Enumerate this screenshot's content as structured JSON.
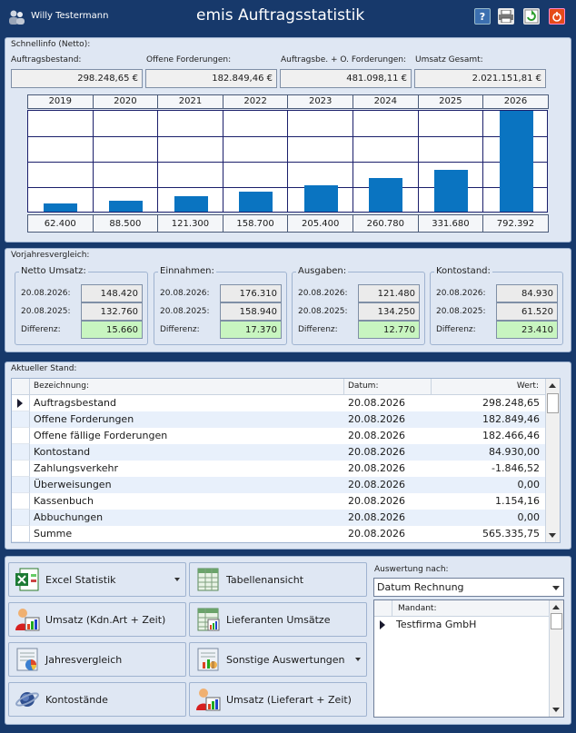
{
  "header": {
    "user_name": "Willy Testermann",
    "title": "emis Auftragsstatistik",
    "help_icon": "?",
    "print_icon": "printer-icon",
    "refresh_icon": "refresh-icon",
    "power_icon": "power-icon"
  },
  "schnellinfo": {
    "title": "Schnellinfo (Netto):",
    "fields": [
      {
        "label": "Auftragsbestand:",
        "value": "298.248,65 €"
      },
      {
        "label": "Offene Forderungen:",
        "value": "182.849,46 €"
      },
      {
        "label": "Auftragsbe. + O. Forderungen:",
        "value": "481.098,11 €"
      },
      {
        "label": "Umsatz Gesamt:",
        "value": "2.021.151,81 €"
      }
    ]
  },
  "chart_data": {
    "type": "bar",
    "categories": [
      "2019",
      "2020",
      "2021",
      "2022",
      "2023",
      "2024",
      "2025",
      "2026"
    ],
    "values": [
      62400,
      88500,
      121300,
      158700,
      205400,
      260780,
      331680,
      792392
    ],
    "value_labels": [
      "62.400",
      "88.500",
      "121.300",
      "158.700",
      "205.400",
      "260.780",
      "331.680",
      "792.392"
    ],
    "ylim": [
      0,
      792392
    ],
    "grid": true,
    "color": "#0a74c1"
  },
  "vorjahr": {
    "title": "Vorjahresvergleich:",
    "groups": [
      {
        "title": "Netto Umsatz:",
        "date1": "20.08.2026:",
        "val1": "148.420",
        "date2": "20.08.2025:",
        "val2": "132.760",
        "diff_label": "Differenz:",
        "diff": "15.660"
      },
      {
        "title": "Einnahmen:",
        "date1": "20.08.2026:",
        "val1": "176.310",
        "date2": "20.08.2025:",
        "val2": "158.940",
        "diff_label": "Differenz:",
        "diff": "17.370"
      },
      {
        "title": "Ausgaben:",
        "date1": "20.08.2026:",
        "val1": "121.480",
        "date2": "20.08.2025:",
        "val2": "134.250",
        "diff_label": "Differenz:",
        "diff": "12.770"
      },
      {
        "title": "Kontostand:",
        "date1": "20.08.2026:",
        "val1": "84.930",
        "date2": "20.08.2025:",
        "val2": "61.520",
        "diff_label": "Differenz:",
        "diff": "23.410"
      }
    ]
  },
  "stand": {
    "title": "Aktueller Stand:",
    "columns": [
      "Bezeichnung:",
      "Datum:",
      "Wert:"
    ],
    "rows": [
      {
        "name": "Auftragsbestand",
        "date": "20.08.2026",
        "value": "298.248,65"
      },
      {
        "name": "Offene Forderungen",
        "date": "20.08.2026",
        "value": "182.849,46"
      },
      {
        "name": "Offene fällige Forderungen",
        "date": "20.08.2026",
        "value": "182.466,46"
      },
      {
        "name": "Kontostand",
        "date": "20.08.2026",
        "value": "84.930,00"
      },
      {
        "name": "Zahlungsverkehr",
        "date": "20.08.2026",
        "value": "-1.846,52"
      },
      {
        "name": "Überweisungen",
        "date": "20.08.2026",
        "value": "0,00"
      },
      {
        "name": "Kassenbuch",
        "date": "20.08.2026",
        "value": "1.154,16"
      },
      {
        "name": "Abbuchungen",
        "date": "20.08.2026",
        "value": "0,00"
      },
      {
        "name": "Summe",
        "date": "20.08.2026",
        "value": "565.335,75"
      }
    ]
  },
  "buttons": [
    {
      "label": "Excel Statistik",
      "icon": "excel-icon",
      "dropdown": true
    },
    {
      "label": "Tabellenansicht",
      "icon": "table-icon",
      "dropdown": false
    },
    {
      "label": "Umsatz (Kdn.Art + Zeit)",
      "icon": "person-chart-icon",
      "dropdown": false
    },
    {
      "label": "Lieferanten Umsätze",
      "icon": "table-chart-icon",
      "dropdown": false
    },
    {
      "label": "Jahresvergleich",
      "icon": "pie-document-icon",
      "dropdown": false
    },
    {
      "label": "Sonstige Auswertungen",
      "icon": "document-chart-icon",
      "dropdown": true
    },
    {
      "label": "Kontostände",
      "icon": "planet-icon",
      "dropdown": false
    },
    {
      "label": "Umsatz (Lieferart + Zeit)",
      "icon": "person-chart-icon",
      "dropdown": false
    }
  ],
  "auswertung": {
    "label": "Auswertung nach:",
    "selected": "Datum Rechnung",
    "mandant_header": "Mandant:",
    "mandant": "Testfirma GmbH"
  }
}
